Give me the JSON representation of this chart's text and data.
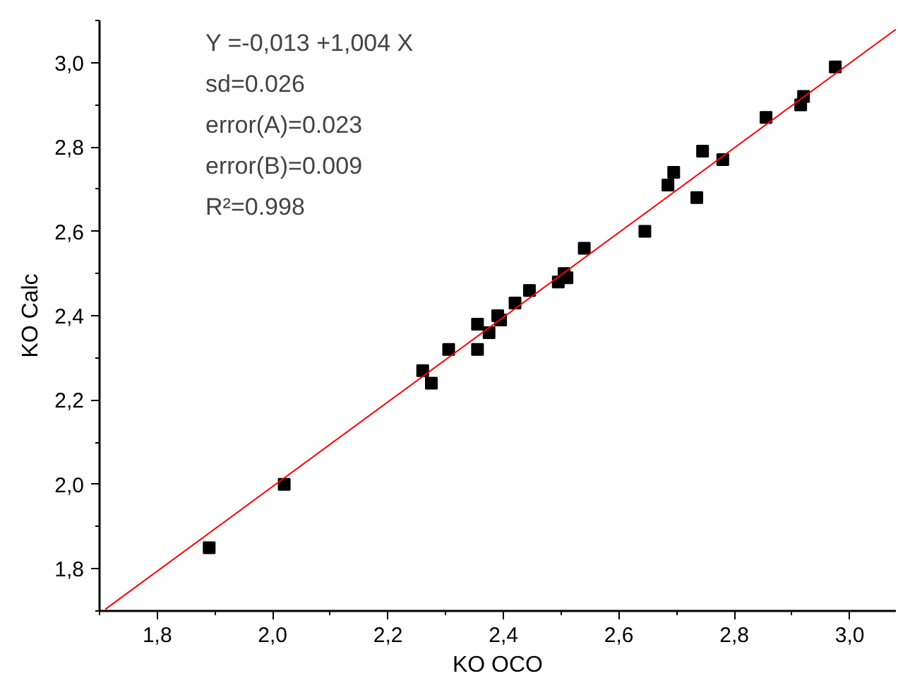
{
  "chart_data": {
    "type": "scatter",
    "xlabel": "KO OCO",
    "ylabel": "KO Calc",
    "annotations": [
      "Y =-0,013 +1,004  X",
      "sd=0.026",
      "error(A)=0.023",
      "error(B)=0.009",
      "R²=0.998"
    ],
    "xlim": [
      1.7,
      3.08
    ],
    "ylim": [
      1.7,
      3.1
    ],
    "xticks": [
      {
        "value": 1.8,
        "label": "1,8"
      },
      {
        "value": 2.0,
        "label": "2,0"
      },
      {
        "value": 2.2,
        "label": "2,2"
      },
      {
        "value": 2.4,
        "label": "2,4"
      },
      {
        "value": 2.6,
        "label": "2,6"
      },
      {
        "value": 2.8,
        "label": "2,8"
      },
      {
        "value": 3.0,
        "label": "3,0"
      }
    ],
    "yticks": [
      {
        "value": 1.8,
        "label": "1,8"
      },
      {
        "value": 2.0,
        "label": "2,0"
      },
      {
        "value": 2.2,
        "label": "2,2"
      },
      {
        "value": 2.4,
        "label": "2,4"
      },
      {
        "value": 2.6,
        "label": "2,6"
      },
      {
        "value": 2.8,
        "label": "2,8"
      },
      {
        "value": 3.0,
        "label": "3,0"
      }
    ],
    "grid": false,
    "marker": "square",
    "series": [
      {
        "color": "#000000",
        "x": [
          1.89,
          2.02,
          2.26,
          2.275,
          2.305,
          2.355,
          2.355,
          2.375,
          2.39,
          2.395,
          2.42,
          2.445,
          2.495,
          2.505,
          2.51,
          2.54,
          2.645,
          2.685,
          2.695,
          2.735,
          2.745,
          2.78,
          2.855,
          2.915,
          2.92,
          2.975
        ],
        "values": [
          1.85,
          2.0,
          2.27,
          2.24,
          2.32,
          2.32,
          2.38,
          2.36,
          2.4,
          2.39,
          2.43,
          2.46,
          2.48,
          2.5,
          2.49,
          2.56,
          2.6,
          2.71,
          2.74,
          2.68,
          2.79,
          2.77,
          2.87,
          2.9,
          2.92,
          2.99
        ]
      },
      {
        "type": "line",
        "marker": "none",
        "color": "#ff0000",
        "line_style": "solid",
        "x": [
          1.71,
          3.08
        ],
        "values": [
          1.704,
          3.079
        ]
      }
    ]
  }
}
